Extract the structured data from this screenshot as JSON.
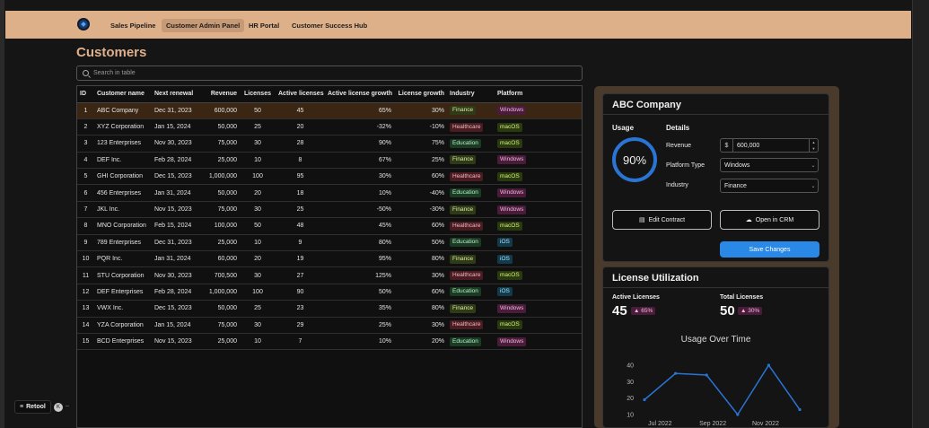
{
  "nav": {
    "items": [
      {
        "label": "Sales Pipeline",
        "active": false
      },
      {
        "label": "Customer Admin Panel",
        "active": true
      },
      {
        "label": "HR Portal",
        "active": false
      },
      {
        "label": "Customer Success Hub",
        "active": false
      }
    ]
  },
  "page": {
    "title": "Customers"
  },
  "search": {
    "placeholder": "Search in table"
  },
  "table": {
    "columns": [
      "ID",
      "Customer name",
      "Next renewal",
      "Revenue",
      "Licenses",
      "Active licenses",
      "Active license growth",
      "License growth",
      "Industry",
      "Platform"
    ],
    "rows": [
      [
        "1",
        "ABC Company",
        "Dec 31, 2023",
        "600,000",
        "50",
        "45",
        "65%",
        "30%",
        "Finance",
        "Windows"
      ],
      [
        "2",
        "XYZ Corporation",
        "Jan 15, 2024",
        "50,000",
        "25",
        "20",
        "-32%",
        "-10%",
        "Healthcare",
        "macOS"
      ],
      [
        "3",
        "123 Enterprises",
        "Nov 30, 2023",
        "75,000",
        "30",
        "28",
        "90%",
        "75%",
        "Education",
        "macOS"
      ],
      [
        "4",
        "DEF Inc.",
        "Feb 28, 2024",
        "25,000",
        "10",
        "8",
        "67%",
        "25%",
        "Finance",
        "Windows"
      ],
      [
        "5",
        "GHI Corporation",
        "Dec 15, 2023",
        "1,000,000",
        "100",
        "95",
        "30%",
        "60%",
        "Healthcare",
        "macOS"
      ],
      [
        "6",
        "456 Enterprises",
        "Jan 31, 2024",
        "50,000",
        "20",
        "18",
        "10%",
        "-40%",
        "Education",
        "Windows"
      ],
      [
        "7",
        "JKL Inc.",
        "Nov 15, 2023",
        "75,000",
        "30",
        "25",
        "-50%",
        "-30%",
        "Finance",
        "Windows"
      ],
      [
        "8",
        "MNO Corporation",
        "Feb 15, 2024",
        "100,000",
        "50",
        "48",
        "45%",
        "60%",
        "Healthcare",
        "macOS"
      ],
      [
        "9",
        "789 Enterprises",
        "Dec 31, 2023",
        "25,000",
        "10",
        "9",
        "80%",
        "50%",
        "Education",
        "iOS"
      ],
      [
        "10",
        "PQR Inc.",
        "Jan 31, 2024",
        "60,000",
        "20",
        "19",
        "95%",
        "80%",
        "Finance",
        "iOS"
      ],
      [
        "11",
        "STU Corporation",
        "Nov 30, 2023",
        "700,500",
        "30",
        "27",
        "125%",
        "30%",
        "Healthcare",
        "macOS"
      ],
      [
        "12",
        "DEF Enterprises",
        "Feb 28, 2024",
        "1,000,000",
        "100",
        "90",
        "50%",
        "60%",
        "Education",
        "iOS"
      ],
      [
        "13",
        "VWX Inc.",
        "Dec 15, 2023",
        "50,000",
        "25",
        "23",
        "35%",
        "80%",
        "Finance",
        "Windows"
      ],
      [
        "14",
        "YZA Corporation",
        "Jan 15, 2024",
        "75,000",
        "30",
        "29",
        "25%",
        "30%",
        "Healthcare",
        "macOS"
      ],
      [
        "15",
        "BCD Enterprises",
        "Nov 15, 2023",
        "25,000",
        "10",
        "7",
        "10%",
        "20%",
        "Education",
        "Windows"
      ]
    ]
  },
  "detail": {
    "company": "ABC Company",
    "usage_label": "Usage",
    "usage_value": "90%",
    "details_label": "Details",
    "revenue_label": "Revenue",
    "revenue_prefix": "$",
    "revenue_value": "600,000",
    "platform_label": "Platform Type",
    "platform_value": "Windows",
    "industry_label": "Industry",
    "industry_value": "Finance",
    "edit_contract": "Edit Contract",
    "open_crm": "Open in CRM",
    "save_changes": "Save Changes"
  },
  "license": {
    "title": "License Utilization",
    "active_label": "Active Licenses",
    "active_value": "45",
    "active_badge": "65%",
    "total_label": "Total Licenses",
    "total_value": "50",
    "total_badge": "30%"
  },
  "chart_data": {
    "type": "line",
    "title": "Usage Over Time",
    "x_tick_labels": [
      "Jul 2022",
      "Sep 2022",
      "Nov 2022"
    ],
    "y_ticks": [
      10,
      20,
      30,
      40
    ],
    "ylim": [
      10,
      40
    ],
    "values": [
      19,
      35,
      34,
      10,
      40,
      13
    ],
    "color": "#2a74d4"
  },
  "footer": {
    "brand": "Retool"
  }
}
